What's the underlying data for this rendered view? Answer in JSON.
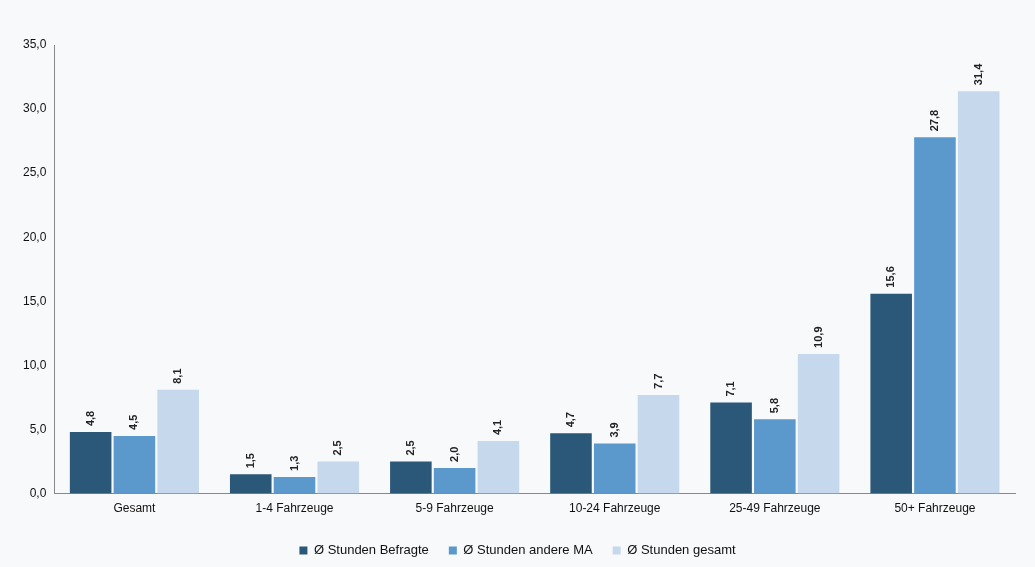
{
  "chart_data": {
    "type": "bar",
    "categories": [
      "Gesamt",
      "1-4 Fahrzeuge",
      "5-9 Fahrzeuge",
      "10-24 Fahrzeuge",
      "25-49 Fahrzeuge",
      "50+ Fahrzeuge"
    ],
    "series": [
      {
        "name": "Ø Stunden Befragte",
        "color": "#2b5878",
        "values": [
          4.8,
          1.5,
          2.5,
          4.7,
          7.1,
          15.6
        ],
        "value_labels": [
          "4,8",
          "1,5",
          "2,5",
          "4,7",
          "7,1",
          "15,6"
        ]
      },
      {
        "name": "Ø Stunden andere MA",
        "color": "#5b98cc",
        "values": [
          4.5,
          1.3,
          2.0,
          3.9,
          5.8,
          27.8
        ],
        "value_labels": [
          "4,5",
          "1,3",
          "2,0",
          "3,9",
          "5,8",
          "27,8"
        ]
      },
      {
        "name": "Ø Stunden gesamt",
        "color": "#c5d8ec",
        "values": [
          8.1,
          2.5,
          4.1,
          7.7,
          10.9,
          31.4
        ],
        "value_labels": [
          "8,1",
          "2,5",
          "4,1",
          "7,7",
          "10,9",
          "31,4"
        ]
      }
    ],
    "ylim": [
      0,
      35
    ],
    "yticks": [
      {
        "value": 0,
        "label": "0,0"
      },
      {
        "value": 5,
        "label": "5,0"
      },
      {
        "value": 10,
        "label": "10,0"
      },
      {
        "value": 15,
        "label": "15,0"
      },
      {
        "value": 20,
        "label": "20,0"
      },
      {
        "value": 25,
        "label": "25,0"
      },
      {
        "value": 30,
        "label": "30,0"
      },
      {
        "value": 35,
        "label": "35,0"
      }
    ],
    "grid": false,
    "legend": "bottom"
  }
}
